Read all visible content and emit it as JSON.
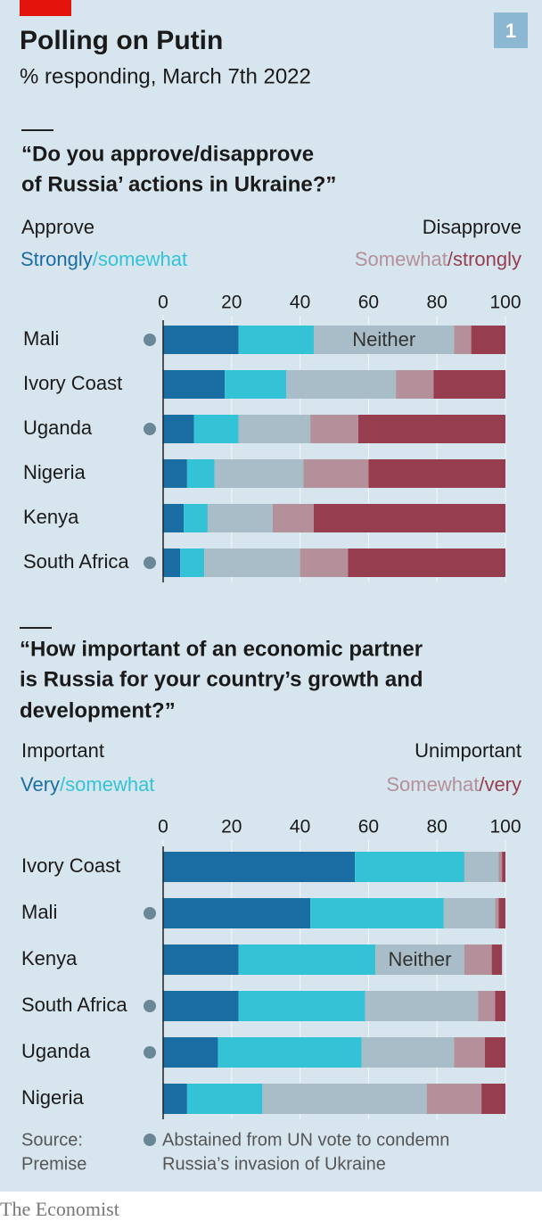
{
  "header": {
    "title": "Polling on Putin",
    "subtitle": "% responding, March 7th 2022",
    "badge": "1"
  },
  "chart_data": [
    {
      "type": "bar",
      "title": "“Do you approve/disapprove",
      "title_line2": "of Russia’ actions in Ukraine?”",
      "left_heading": "Approve",
      "right_heading": "Disapprove",
      "legend_separator": "/",
      "categories": [
        "Mali",
        "Ivory Coast",
        "Uganda",
        "Nigeria",
        "Kenya",
        "South Africa"
      ],
      "abstained": [
        true,
        false,
        true,
        false,
        false,
        true
      ],
      "series": [
        {
          "name": "Strongly",
          "color": "#1a6da3",
          "values": [
            22,
            18,
            9,
            7,
            6,
            5
          ]
        },
        {
          "name": "somewhat",
          "color": "#34c3d6",
          "values": [
            22,
            18,
            13,
            8,
            7,
            7
          ]
        },
        {
          "name": "Neither",
          "color": "#a8bdc7",
          "values": [
            41,
            32,
            21,
            26,
            19,
            28
          ]
        },
        {
          "name": "Somewhat",
          "color": "#b3909a",
          "values": [
            5,
            11,
            14,
            19,
            12,
            14
          ]
        },
        {
          "name": "strongly",
          "color": "#973d50",
          "values": [
            10,
            21,
            43,
            40,
            56,
            46
          ]
        }
      ],
      "series_label_category": "Mali",
      "xlim": [
        0,
        100
      ],
      "xticks": [
        0,
        20,
        40,
        60,
        80,
        100
      ],
      "grid": true
    },
    {
      "type": "bar",
      "title": "“How important of an economic partner",
      "title_line2": "is Russia for your country’s growth and",
      "title_line3": "development?”",
      "left_heading": "Important",
      "right_heading": "Unimportant",
      "legend_separator": "/",
      "categories": [
        "Ivory Coast",
        "Mali",
        "Kenya",
        "South Africa",
        "Uganda",
        "Nigeria"
      ],
      "abstained": [
        false,
        true,
        false,
        true,
        true,
        false
      ],
      "series": [
        {
          "name": "Very",
          "color": "#1a6da3",
          "values": [
            56,
            43,
            22,
            22,
            16,
            7
          ]
        },
        {
          "name": "somewhat",
          "color": "#34c3d6",
          "values": [
            32,
            39,
            40,
            37,
            42,
            22
          ]
        },
        {
          "name": "Neither",
          "color": "#a8bdc7",
          "values": [
            10,
            15,
            26,
            33,
            27,
            48
          ]
        },
        {
          "name": "Somewhat",
          "color": "#b3909a",
          "values": [
            1,
            1,
            8,
            5,
            9,
            16
          ]
        },
        {
          "name": "very",
          "color": "#973d50",
          "values": [
            1,
            2,
            3,
            3,
            6,
            7
          ]
        }
      ],
      "series_label_category": "Kenya",
      "xlim": [
        0,
        100
      ],
      "xticks": [
        0,
        20,
        40,
        60,
        80,
        100
      ],
      "grid": true
    }
  ],
  "footer": {
    "source": "Source:",
    "source_name": "Premise",
    "note": "Abstained from UN vote to condemn",
    "note_line2": "Russia’s invasion of Ukraine",
    "brand": "The Economist"
  }
}
